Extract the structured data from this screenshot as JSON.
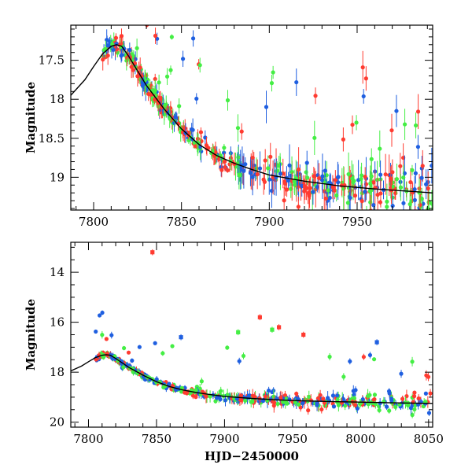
{
  "chart_data": [
    {
      "type": "scatter",
      "panel": "top",
      "title": "",
      "xlabel": "",
      "ylabel": "Magnitude",
      "xlim": [
        7787,
        7993
      ],
      "ylim": [
        19.42,
        17.05
      ],
      "y_inverted": true,
      "xticks": [
        7800,
        7850,
        7900,
        7950
      ],
      "yticks": [
        17.5,
        18,
        18.5,
        19
      ],
      "xticklabels": [
        "7800",
        "7850",
        "7900",
        "7950"
      ],
      "yticklabels": [
        "17.5",
        "18",
        "18.5",
        "19"
      ],
      "legend": "none",
      "grid": false,
      "series": [
        {
          "color": "#ff3b30"
        },
        {
          "color": "#1f5fe0"
        },
        {
          "color": "#44ee44"
        }
      ],
      "model_curve": {
        "color": "#000000",
        "x": [
          7787,
          7795,
          7800,
          7805,
          7810,
          7813,
          7816,
          7820,
          7830,
          7840,
          7850,
          7860,
          7870,
          7880,
          7890,
          7900,
          7920,
          7940,
          7960,
          7993
        ],
        "y": [
          17.95,
          17.75,
          17.58,
          17.42,
          17.32,
          17.3,
          17.32,
          17.45,
          17.82,
          18.12,
          18.38,
          18.58,
          18.72,
          18.82,
          18.9,
          18.97,
          19.05,
          19.11,
          19.15,
          19.2
        ]
      }
    },
    {
      "type": "scatter",
      "panel": "bottom",
      "title": "",
      "xlabel": "HJD−2450000",
      "ylabel": "Magnitude",
      "xlim": [
        7787,
        8053
      ],
      "ylim": [
        20.2,
        12.8
      ],
      "y_inverted": true,
      "xticks": [
        7800,
        7850,
        7900,
        7950,
        8000,
        8050
      ],
      "yticks": [
        14,
        16,
        18,
        20
      ],
      "xticklabels": [
        "7800",
        "7850",
        "7900",
        "7950",
        "8000",
        "8050"
      ],
      "yticklabels": [
        "14",
        "16",
        "18",
        "20"
      ],
      "legend": "none",
      "grid": false,
      "series": [
        {
          "color": "#ff3b30"
        },
        {
          "color": "#1f5fe0"
        },
        {
          "color": "#44ee44"
        }
      ],
      "model_curve": {
        "color": "#000000",
        "x": [
          7787,
          7795,
          7800,
          7805,
          7810,
          7813,
          7816,
          7820,
          7830,
          7840,
          7850,
          7860,
          7870,
          7880,
          7890,
          7900,
          7920,
          7940,
          7960,
          7980,
          8000,
          8020,
          8053
        ],
        "y": [
          17.95,
          17.75,
          17.58,
          17.42,
          17.32,
          17.3,
          17.32,
          17.45,
          17.82,
          18.12,
          18.38,
          18.58,
          18.72,
          18.82,
          18.9,
          18.97,
          19.05,
          19.11,
          19.15,
          19.18,
          19.2,
          19.22,
          19.25
        ]
      },
      "outliers": [
        {
          "x": 7847,
          "y": 13.2,
          "series": 0
        },
        {
          "x": 7926,
          "y": 15.8,
          "series": 0
        },
        {
          "x": 7940,
          "y": 16.2,
          "series": 0
        },
        {
          "x": 7868,
          "y": 16.6,
          "series": 1
        },
        {
          "x": 7910,
          "y": 16.4,
          "series": 2
        },
        {
          "x": 7935,
          "y": 16.3,
          "series": 2
        },
        {
          "x": 7958,
          "y": 16.5,
          "series": 0
        },
        {
          "x": 8012,
          "y": 16.8,
          "series": 1
        }
      ]
    }
  ]
}
